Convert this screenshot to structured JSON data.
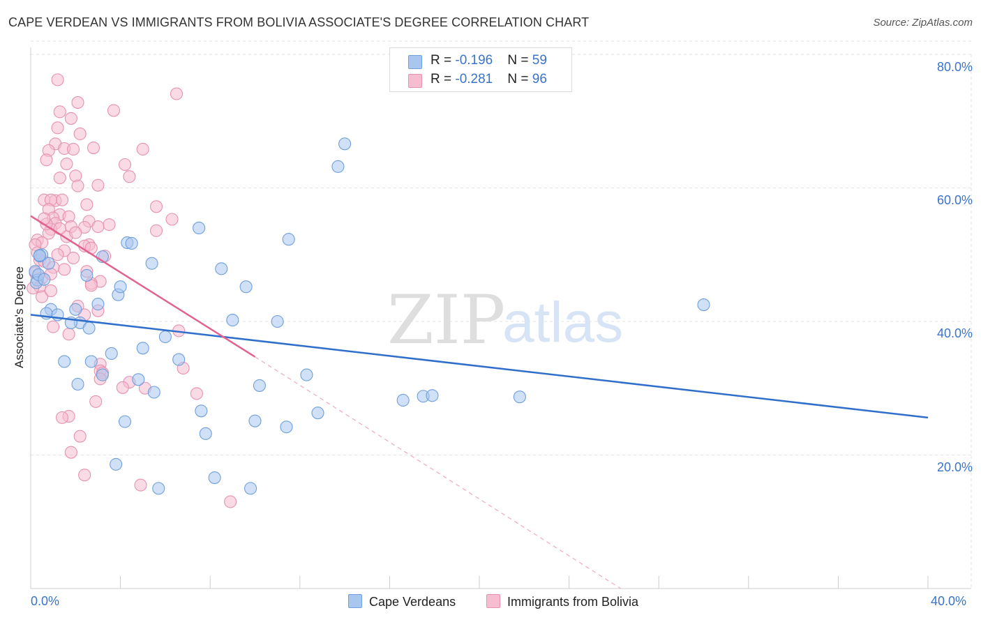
{
  "title": "CAPE VERDEAN VS IMMIGRANTS FROM BOLIVIA ASSOCIATE'S DEGREE CORRELATION CHART",
  "source": "Source: ZipAtlas.com",
  "watermark": {
    "zip": "ZIP",
    "atlas": "atlas"
  },
  "legend_top": [
    {
      "r_label": "R = ",
      "r": "-0.196",
      "n_label": "N = ",
      "n": "59"
    },
    {
      "r_label": "R = ",
      "r": "-0.281",
      "n_label": "N = ",
      "n": "96"
    }
  ],
  "colors": {
    "blue_fill": "#a9c6ef",
    "blue_stroke": "#6f9fdc",
    "blue_line": "#2f6fcb",
    "pink_fill": "#f6bcd0",
    "pink_stroke": "#e592b0",
    "pink_line": "#e2628f",
    "grid": "#e3e3e3",
    "tick_text": "#3a73c9"
  },
  "chart_data": {
    "type": "scatter",
    "title": "CAPE VERDEAN VS IMMIGRANTS FROM BOLIVIA ASSOCIATE'S DEGREE CORRELATION CHART",
    "xlabel": "",
    "ylabel": "Associate's Degree",
    "xlim": [
      0,
      40
    ],
    "ylim": [
      0,
      82
    ],
    "x_tick_labels": [
      "0.0%",
      "40.0%"
    ],
    "y_ticks": [
      20,
      40,
      60,
      80
    ],
    "y_tick_labels": [
      "20.0%",
      "40.0%",
      "60.0%",
      "80.0%"
    ],
    "grid": true,
    "legend_position": "bottom",
    "series": [
      {
        "name": "Cape Verdeans",
        "R": -0.196,
        "N": 59,
        "trend": {
          "x": [
            0,
            40
          ],
          "y": [
            41.0,
            25.6
          ],
          "dashed": false
        },
        "points": [
          [
            0.2,
            47.5
          ],
          [
            0.3,
            46.2
          ],
          [
            0.25,
            45.8
          ],
          [
            0.35,
            47.0
          ],
          [
            0.5,
            50.0
          ],
          [
            0.4,
            49.8
          ],
          [
            0.8,
            48.7
          ],
          [
            0.9,
            41.8
          ],
          [
            0.7,
            41.2
          ],
          [
            1.2,
            41.0
          ],
          [
            2.0,
            41.8
          ],
          [
            1.5,
            34.0
          ],
          [
            2.1,
            30.6
          ],
          [
            2.2,
            39.8
          ],
          [
            2.6,
            39.0
          ],
          [
            3.0,
            42.6
          ],
          [
            3.2,
            49.7
          ],
          [
            2.7,
            34.0
          ],
          [
            3.6,
            35.2
          ],
          [
            3.9,
            44.0
          ],
          [
            4.0,
            45.2
          ],
          [
            4.3,
            51.8
          ],
          [
            4.5,
            51.7
          ],
          [
            4.2,
            25.0
          ],
          [
            3.8,
            18.6
          ],
          [
            4.8,
            31.3
          ],
          [
            5.0,
            36.0
          ],
          [
            5.4,
            48.7
          ],
          [
            5.5,
            29.4
          ],
          [
            5.7,
            15.0
          ],
          [
            6.0,
            37.7
          ],
          [
            6.6,
            34.3
          ],
          [
            7.5,
            54.0
          ],
          [
            7.6,
            26.6
          ],
          [
            7.8,
            23.2
          ],
          [
            8.2,
            16.6
          ],
          [
            8.5,
            47.9
          ],
          [
            9.0,
            40.2
          ],
          [
            9.6,
            45.2
          ],
          [
            9.8,
            15.0
          ],
          [
            10.0,
            25.1
          ],
          [
            10.2,
            30.4
          ],
          [
            11.0,
            40.0
          ],
          [
            11.5,
            52.3
          ],
          [
            11.4,
            24.2
          ],
          [
            12.3,
            32.0
          ],
          [
            12.8,
            26.3
          ],
          [
            13.7,
            63.2
          ],
          [
            14.0,
            66.6
          ],
          [
            16.6,
            28.2
          ],
          [
            17.5,
            28.8
          ],
          [
            17.9,
            28.9
          ],
          [
            21.8,
            28.7
          ],
          [
            30.0,
            42.5
          ],
          [
            3.2,
            32.0
          ],
          [
            1.8,
            39.8
          ],
          [
            2.5,
            46.9
          ],
          [
            0.6,
            46.3
          ],
          [
            0.4,
            49.9
          ]
        ]
      },
      {
        "name": "Immigrants from Bolivia",
        "R": -0.281,
        "N": 96,
        "trend": {
          "x": [
            0,
            10
          ],
          "y": [
            55.8,
            34.7
          ],
          "dashed": false,
          "extension": {
            "x": [
              10,
              26.3
            ],
            "y": [
              34.7,
              0
            ]
          }
        },
        "points": [
          [
            1.2,
            76.2
          ],
          [
            2.1,
            72.8
          ],
          [
            1.3,
            71.4
          ],
          [
            3.7,
            71.6
          ],
          [
            1.8,
            70.4
          ],
          [
            6.5,
            74.1
          ],
          [
            1.2,
            69.0
          ],
          [
            2.2,
            68.1
          ],
          [
            1.1,
            66.6
          ],
          [
            1.5,
            65.9
          ],
          [
            0.8,
            65.6
          ],
          [
            1.9,
            65.8
          ],
          [
            2.8,
            66.0
          ],
          [
            5.0,
            65.8
          ],
          [
            0.7,
            64.2
          ],
          [
            1.6,
            63.6
          ],
          [
            4.2,
            63.5
          ],
          [
            2.0,
            61.8
          ],
          [
            4.4,
            61.7
          ],
          [
            1.3,
            61.5
          ],
          [
            2.1,
            60.3
          ],
          [
            3.0,
            60.4
          ],
          [
            0.6,
            58.2
          ],
          [
            1.1,
            58.1
          ],
          [
            1.4,
            58.2
          ],
          [
            0.9,
            58.2
          ],
          [
            2.5,
            57.5
          ],
          [
            0.8,
            56.8
          ],
          [
            5.6,
            57.2
          ],
          [
            1.3,
            56.0
          ],
          [
            1.7,
            55.7
          ],
          [
            1.0,
            55.5
          ],
          [
            2.6,
            55.0
          ],
          [
            6.3,
            55.3
          ],
          [
            1.1,
            54.7
          ],
          [
            1.8,
            54.2
          ],
          [
            0.9,
            53.8
          ],
          [
            2.4,
            54.1
          ],
          [
            3.0,
            54.2
          ],
          [
            3.5,
            54.5
          ],
          [
            5.6,
            53.6
          ],
          [
            0.8,
            53.2
          ],
          [
            1.6,
            52.7
          ],
          [
            0.3,
            52.2
          ],
          [
            0.5,
            51.8
          ],
          [
            2.6,
            51.5
          ],
          [
            2.4,
            51.3
          ],
          [
            0.2,
            51.5
          ],
          [
            2.7,
            51.0
          ],
          [
            1.5,
            50.6
          ],
          [
            0.3,
            50.3
          ],
          [
            1.2,
            50.0
          ],
          [
            3.3,
            49.8
          ],
          [
            0.4,
            49.2
          ],
          [
            0.6,
            49.0
          ],
          [
            1.5,
            47.8
          ],
          [
            2.5,
            47.5
          ],
          [
            0.2,
            47.3
          ],
          [
            0.5,
            46.5
          ],
          [
            3.1,
            46.0
          ],
          [
            2.7,
            45.7
          ],
          [
            0.4,
            45.2
          ],
          [
            2.7,
            45.4
          ],
          [
            0.1,
            45.0
          ],
          [
            0.5,
            43.7
          ],
          [
            2.1,
            42.3
          ],
          [
            3.0,
            41.6
          ],
          [
            2.4,
            41.0
          ],
          [
            1.0,
            39.2
          ],
          [
            6.6,
            38.6
          ],
          [
            1.7,
            38.1
          ],
          [
            3.1,
            33.6
          ],
          [
            6.8,
            33.0
          ],
          [
            3.1,
            32.6
          ],
          [
            3.2,
            32.3
          ],
          [
            4.4,
            30.9
          ],
          [
            3.1,
            31.4
          ],
          [
            4.1,
            30.1
          ],
          [
            5.1,
            30.0
          ],
          [
            7.4,
            29.2
          ],
          [
            1.7,
            25.8
          ],
          [
            1.4,
            25.6
          ],
          [
            2.2,
            22.8
          ],
          [
            1.8,
            20.4
          ],
          [
            2.4,
            17.0
          ],
          [
            4.9,
            15.5
          ],
          [
            8.9,
            13.0
          ],
          [
            2.9,
            28.0
          ],
          [
            0.9,
            44.6
          ],
          [
            1.0,
            48.1
          ],
          [
            1.3,
            53.9
          ],
          [
            0.7,
            54.6
          ],
          [
            2.0,
            53.3
          ],
          [
            1.9,
            49.5
          ],
          [
            0.6,
            55.4
          ],
          [
            0.9,
            47.1
          ]
        ]
      }
    ]
  },
  "legend_bottom": [
    "Cape Verdeans",
    "Immigrants from Bolivia"
  ]
}
